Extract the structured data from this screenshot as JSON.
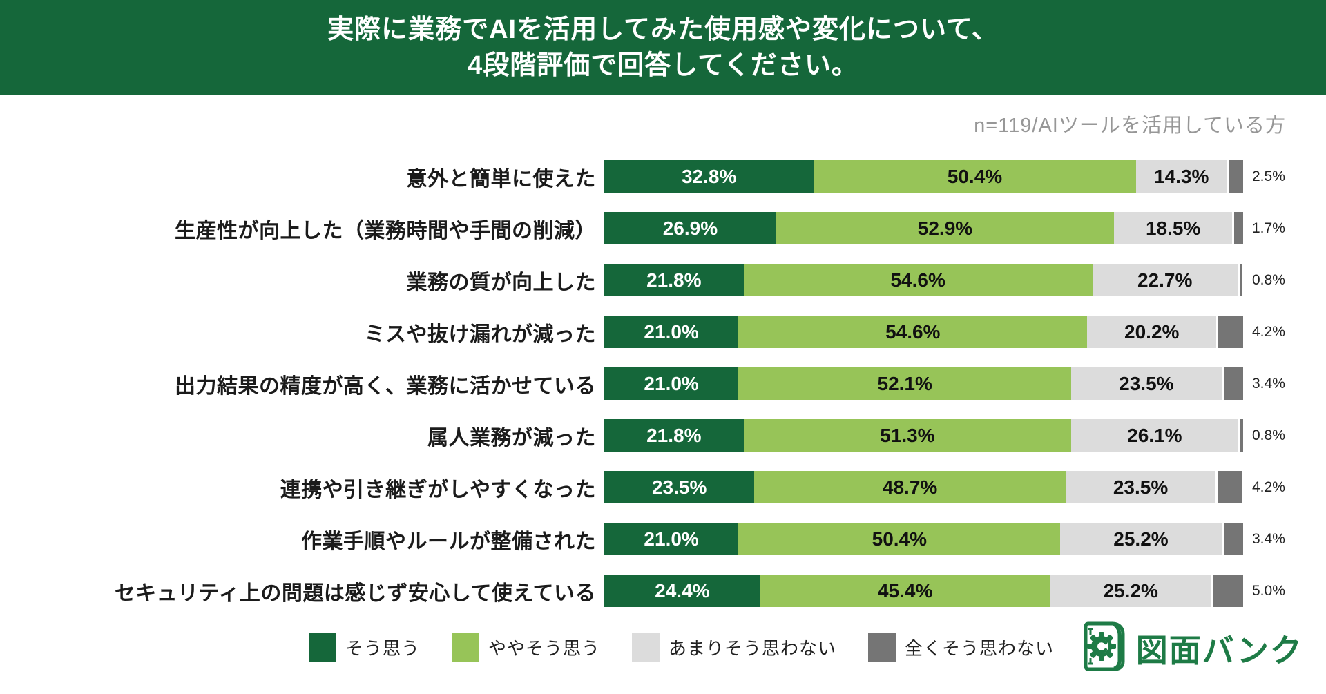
{
  "title": {
    "line1": "実際に業務でAIを活用してみた使用感や変化について、",
    "line2": "4段階評価で回答してください。"
  },
  "sample_note": "n=119/AIツールを活用している方",
  "chart_data": {
    "type": "bar",
    "stacked": true,
    "orientation": "horizontal",
    "xlim": [
      0,
      100
    ],
    "value_suffix": "%",
    "grid": false,
    "legend_position": "bottom",
    "categories": [
      "意外と簡単に使えた",
      "生産性が向上した（業務時間や手間の削減）",
      "業務の質が向上した",
      "ミスや抜け漏れが減った",
      "出力結果の精度が高く、業務に活かせている",
      "属人業務が減った",
      "連携や引き継ぎがしやすくなった",
      "作業手順やルールが整備された",
      "セキュリティ上の問題は感じず安心して使えている"
    ],
    "series": [
      {
        "name": "そう思う",
        "color": "#15673A",
        "values": [
          32.8,
          26.9,
          21.8,
          21.0,
          21.0,
          21.8,
          23.5,
          21.0,
          24.4
        ]
      },
      {
        "name": "ややそう思う",
        "color": "#97C458",
        "values": [
          50.4,
          52.9,
          54.6,
          54.6,
          52.1,
          51.3,
          48.7,
          50.4,
          45.4
        ]
      },
      {
        "name": "あまりそう思わない",
        "color": "#DCDCDC",
        "values": [
          14.3,
          18.5,
          22.7,
          20.2,
          23.5,
          26.1,
          23.5,
          25.2,
          25.2
        ]
      },
      {
        "name": "全くそう思わない",
        "color": "#757575",
        "values": [
          2.5,
          1.7,
          0.8,
          4.2,
          3.4,
          0.8,
          4.2,
          3.4,
          5.0
        ]
      }
    ]
  },
  "logo": {
    "text": "図面バンク",
    "color": "#1E7B46"
  }
}
